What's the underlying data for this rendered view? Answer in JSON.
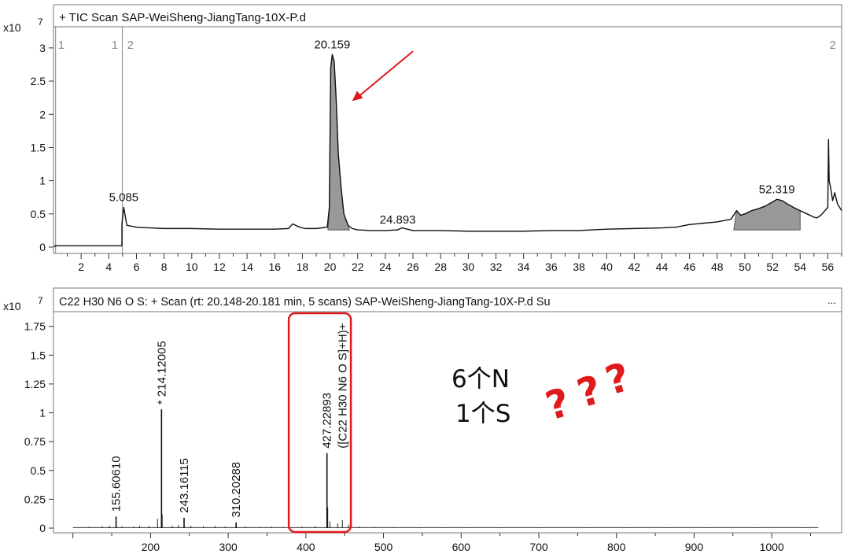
{
  "chart_data": [
    {
      "type": "line",
      "title": "+ TIC Scan SAP-WeiSheng-JiangTang-10X-P.d",
      "y_exponent_base": "x10",
      "y_exponent": "7",
      "xlabel": "",
      "ylabel": "",
      "xlim": [
        0,
        57
      ],
      "ylim": [
        0,
        3.2
      ],
      "x_ticks": [
        2,
        4,
        6,
        8,
        10,
        12,
        14,
        16,
        18,
        20,
        22,
        24,
        26,
        28,
        30,
        32,
        34,
        36,
        38,
        40,
        42,
        44,
        46,
        48,
        50,
        52,
        54,
        56
      ],
      "y_ticks": [
        0,
        0.5,
        1,
        1.5,
        2,
        2.5,
        3
      ],
      "y_tick_labels": [
        "0",
        "0.5",
        "1",
        "1.5",
        "2",
        "2.5",
        "3"
      ],
      "segment_markers": [
        {
          "x": 0.1,
          "label": "1"
        },
        {
          "x": 4.9,
          "label": "1"
        },
        {
          "x": 5.1,
          "label": "2"
        },
        {
          "x": 56.8,
          "label": "2"
        }
      ],
      "series": [
        {
          "x": [
            0.1,
            0.1,
            4.95,
            4.95,
            5.0,
            5.085,
            5.3,
            6,
            7,
            8,
            10,
            12,
            14,
            16,
            17.0,
            17.3,
            17.8,
            18.2,
            19,
            19.8,
            19.95,
            20.05,
            20.159,
            20.3,
            20.45,
            20.6,
            20.8,
            21.0,
            21.3,
            21.6,
            22,
            23,
            24,
            24.893,
            25.2,
            26,
            28,
            30,
            32,
            34,
            36,
            38,
            40,
            42,
            44,
            45,
            46,
            47,
            48,
            49,
            49.4,
            49.7,
            50,
            50.5,
            51,
            51.5,
            52,
            52.319,
            52.7,
            53,
            53.5,
            54,
            54.5,
            55,
            55.2,
            55.5,
            55.8,
            56.0,
            56.05,
            56.1,
            56.2,
            56.35,
            56.5,
            56.7,
            57
          ],
          "y": [
            0.0,
            0.02,
            0.02,
            0.35,
            0.45,
            0.6,
            0.33,
            0.3,
            0.29,
            0.28,
            0.28,
            0.27,
            0.27,
            0.27,
            0.28,
            0.35,
            0.3,
            0.28,
            0.28,
            0.3,
            0.6,
            2.7,
            2.9,
            2.8,
            2.2,
            1.4,
            0.9,
            0.5,
            0.33,
            0.28,
            0.26,
            0.25,
            0.25,
            0.26,
            0.29,
            0.25,
            0.25,
            0.24,
            0.24,
            0.24,
            0.25,
            0.25,
            0.27,
            0.28,
            0.29,
            0.3,
            0.34,
            0.36,
            0.38,
            0.42,
            0.55,
            0.48,
            0.5,
            0.55,
            0.58,
            0.62,
            0.68,
            0.72,
            0.7,
            0.66,
            0.6,
            0.55,
            0.5,
            0.45,
            0.44,
            0.48,
            0.55,
            0.6,
            1.62,
            1.0,
            0.9,
            0.7,
            0.82,
            0.65,
            0.55
          ]
        }
      ],
      "filled_peaks": [
        {
          "from": 19.85,
          "to": 21.4
        },
        {
          "from": 49.2,
          "to": 54.0
        }
      ],
      "peak_labels": [
        {
          "x": 20.159,
          "y": 2.9,
          "label": "20.159"
        },
        {
          "x": 5.085,
          "y": 0.6,
          "label": "5.085"
        },
        {
          "x": 24.893,
          "y": 0.26,
          "label": "24.893"
        },
        {
          "x": 52.319,
          "y": 0.72,
          "label": "52.319"
        }
      ],
      "annotations": {
        "arrow_color": "#e0191d",
        "arrow_from": {
          "x": 26.0,
          "y": 2.95
        },
        "arrow_to": {
          "x": 21.6,
          "y": 2.2
        }
      }
    },
    {
      "type": "bar",
      "title": "C22 H30 N6 O S: + Scan (rt: 20.148-20.181 min, 5 scans) SAP-WeiSheng-JiangTang-10X-P.d  Su",
      "title_ellipsis": "...",
      "y_exponent_base": "x10",
      "y_exponent": "7",
      "xlabel": "",
      "ylabel": "",
      "xlim": [
        75,
        1090
      ],
      "ylim": [
        0,
        1.85
      ],
      "x_ticks": [
        100,
        200,
        300,
        400,
        500,
        600,
        700,
        800,
        900,
        1000
      ],
      "x_tick_labels": [
        "",
        "200",
        "300",
        "400",
        "500",
        "600",
        "700",
        "800",
        "900",
        "1000"
      ],
      "y_ticks": [
        0,
        0.25,
        0.5,
        0.75,
        1,
        1.25,
        1.5,
        1.75
      ],
      "y_tick_labels": [
        "0",
        "0.25",
        "0.5",
        "0.75",
        "1",
        "1.25",
        "1.5",
        "1.75"
      ],
      "peaks": [
        {
          "mz": 155.6061,
          "value": 0.1,
          "label": "155.60610"
        },
        {
          "mz": 214.12005,
          "value": 1.03,
          "label": "* 214.12005"
        },
        {
          "mz": 243.16115,
          "value": 0.09,
          "label": "243.16115"
        },
        {
          "mz": 310.20288,
          "value": 0.05,
          "label": "310.20288"
        },
        {
          "mz": 427.22893,
          "value": 0.65,
          "label": "427.22893",
          "sublabel": "([C22 H30 N6 O  S]+H)+"
        }
      ],
      "minor_peaks": [
        {
          "mz": 121,
          "value": 0.012
        },
        {
          "mz": 138,
          "value": 0.015
        },
        {
          "mz": 147,
          "value": 0.02
        },
        {
          "mz": 163,
          "value": 0.015
        },
        {
          "mz": 178,
          "value": 0.012
        },
        {
          "mz": 186,
          "value": 0.02
        },
        {
          "mz": 198,
          "value": 0.018
        },
        {
          "mz": 209,
          "value": 0.08
        },
        {
          "mz": 215,
          "value": 0.12
        },
        {
          "mz": 228,
          "value": 0.02
        },
        {
          "mz": 236,
          "value": 0.025
        },
        {
          "mz": 252,
          "value": 0.02
        },
        {
          "mz": 268,
          "value": 0.015
        },
        {
          "mz": 283,
          "value": 0.018
        },
        {
          "mz": 296,
          "value": 0.012
        },
        {
          "mz": 322,
          "value": 0.012
        },
        {
          "mz": 340,
          "value": 0.01
        },
        {
          "mz": 356,
          "value": 0.012
        },
        {
          "mz": 371,
          "value": 0.01
        },
        {
          "mz": 395,
          "value": 0.012
        },
        {
          "mz": 412,
          "value": 0.015
        },
        {
          "mz": 428.2,
          "value": 0.18
        },
        {
          "mz": 431,
          "value": 0.06
        },
        {
          "mz": 441,
          "value": 0.04
        },
        {
          "mz": 447,
          "value": 0.07
        },
        {
          "mz": 455,
          "value": 0.03
        },
        {
          "mz": 469,
          "value": 0.012
        },
        {
          "mz": 488,
          "value": 0.01
        },
        {
          "mz": 512,
          "value": 0.008
        },
        {
          "mz": 548,
          "value": 0.008
        },
        {
          "mz": 575,
          "value": 0.006
        },
        {
          "mz": 612,
          "value": 0.006
        },
        {
          "mz": 654,
          "value": 0.006
        },
        {
          "mz": 706,
          "value": 0.005
        },
        {
          "mz": 760,
          "value": 0.006
        },
        {
          "mz": 810,
          "value": 0.005
        },
        {
          "mz": 866,
          "value": 0.006
        },
        {
          "mz": 922,
          "value": 0.005
        },
        {
          "mz": 975,
          "value": 0.005
        },
        {
          "mz": 1040,
          "value": 0.004
        }
      ],
      "highlight_box": {
        "mz_from": 378,
        "mz_to": 458,
        "color": "#e0191d"
      },
      "annotations": {
        "note_lines": [
          "6个N",
          "1个S"
        ],
        "question_marks": [
          "?",
          "?",
          "?"
        ],
        "question_color": "#e0191d"
      }
    }
  ]
}
